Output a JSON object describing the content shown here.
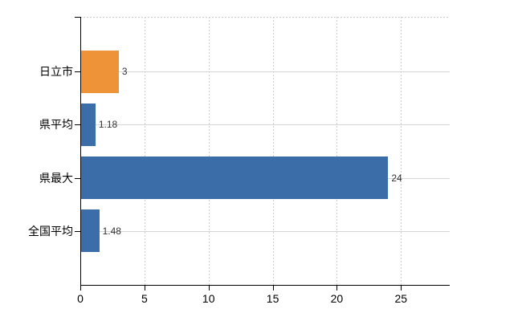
{
  "chart_data": {
    "type": "bar",
    "orientation": "horizontal",
    "title": "",
    "xlabel": "",
    "ylabel": "",
    "categories": [
      "日立市",
      "県平均",
      "県最大",
      "全国平均"
    ],
    "values": [
      3,
      1.18,
      24,
      1.48
    ],
    "value_labels": [
      "3",
      "1.18",
      "24",
      "1.48"
    ],
    "bar_colors": [
      "#ee9338",
      "#3b6da8",
      "#3b6da8",
      "#3b6da8"
    ],
    "x_ticks": [
      0,
      5,
      10,
      15,
      20,
      25
    ],
    "xlim": [
      0,
      28.8
    ],
    "grid": true,
    "legend": "none",
    "colors": {
      "bar_orange": "#ee9338",
      "bar_blue": "#3b6da8",
      "axis": "#000000",
      "gridline_dashed": "#cccccc",
      "row_line": "#d4d4d4",
      "text": "#000000",
      "value_text": "#333333",
      "background": "#ffffff"
    }
  }
}
